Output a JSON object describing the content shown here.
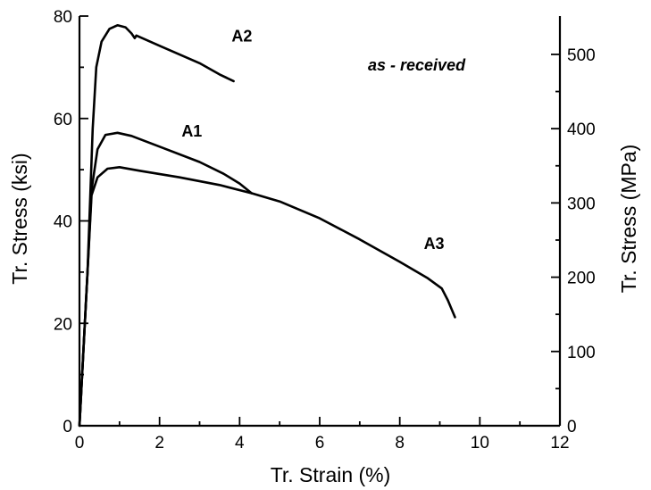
{
  "chart_data": {
    "type": "line",
    "title": "",
    "annotation": "as - received",
    "xlabel": "Tr. Strain   (%)",
    "ylabel": "Tr. Stress   (ksi)",
    "y2label": "Tr. Stress   (MPa)",
    "xlim": [
      0,
      12
    ],
    "ylim": [
      0,
      80
    ],
    "y2lim": [
      0,
      551.6
    ],
    "xticks": [
      "0",
      "2",
      "4",
      "6",
      "8",
      "10",
      "12"
    ],
    "yticks": [
      "0",
      "20",
      "40",
      "60",
      "80"
    ],
    "y2ticks": [
      "0",
      "100",
      "200",
      "300",
      "400",
      "500"
    ],
    "grid": false,
    "series": [
      {
        "name": "A2",
        "label_at": [
          3.8,
          75
        ],
        "points": [
          [
            0,
            0
          ],
          [
            0.2,
            30
          ],
          [
            0.33,
            58
          ],
          [
            0.42,
            70
          ],
          [
            0.55,
            75
          ],
          [
            0.75,
            77.5
          ],
          [
            0.95,
            78.2
          ],
          [
            1.15,
            77.8
          ],
          [
            1.3,
            76.6
          ],
          [
            1.38,
            75.7
          ],
          [
            1.42,
            76.2
          ],
          [
            2.0,
            74.2
          ],
          [
            3.0,
            70.8
          ],
          [
            3.5,
            68.6
          ],
          [
            3.85,
            67.3
          ]
        ]
      },
      {
        "name": "A1",
        "label_at": [
          2.55,
          56.5
        ],
        "points": [
          [
            0,
            0
          ],
          [
            0.2,
            30
          ],
          [
            0.3,
            46
          ],
          [
            0.45,
            54
          ],
          [
            0.65,
            56.8
          ],
          [
            0.95,
            57.2
          ],
          [
            1.3,
            56.6
          ],
          [
            2.0,
            54.5
          ],
          [
            3.0,
            51.5
          ],
          [
            3.6,
            49.2
          ],
          [
            4.0,
            47.3
          ],
          [
            4.3,
            45.4
          ]
        ]
      },
      {
        "name": "A3",
        "label_at": [
          8.6,
          34.5
        ],
        "points": [
          [
            0,
            0
          ],
          [
            0.2,
            30
          ],
          [
            0.3,
            45
          ],
          [
            0.45,
            48.5
          ],
          [
            0.7,
            50.2
          ],
          [
            1.0,
            50.5
          ],
          [
            1.5,
            49.8
          ],
          [
            2.5,
            48.5
          ],
          [
            3.5,
            47.0
          ],
          [
            4.3,
            45.4
          ],
          [
            5.0,
            43.8
          ],
          [
            6.0,
            40.5
          ],
          [
            7.0,
            36.4
          ],
          [
            8.0,
            32.0
          ],
          [
            8.7,
            28.8
          ],
          [
            9.05,
            26.8
          ],
          [
            9.2,
            24.5
          ],
          [
            9.38,
            21.2
          ]
        ]
      }
    ]
  }
}
